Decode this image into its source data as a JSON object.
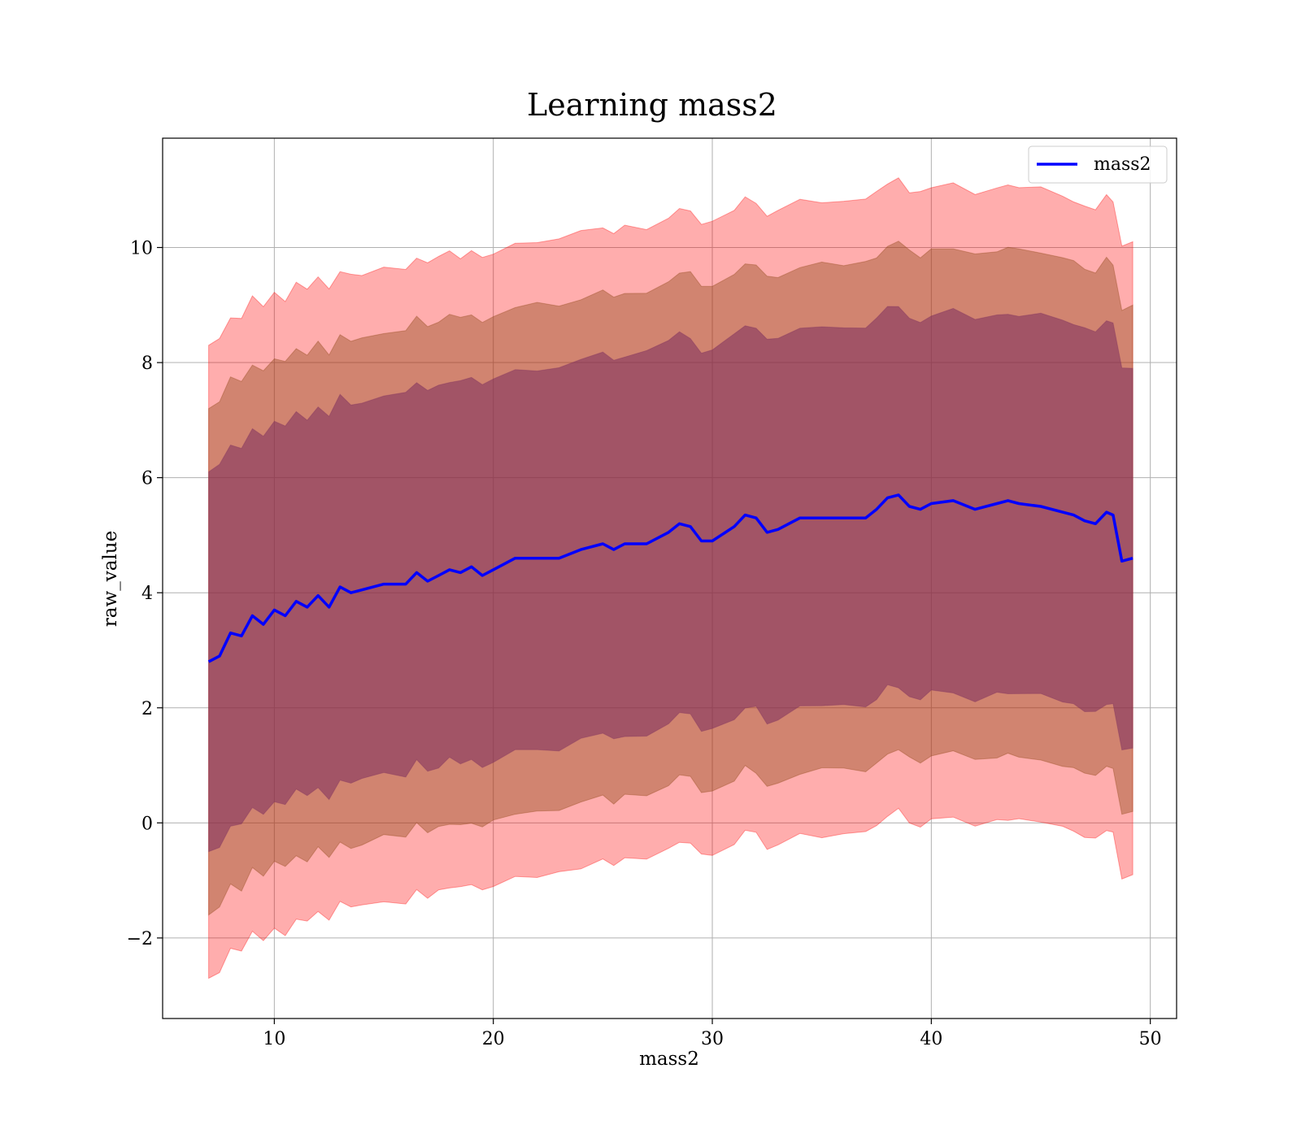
{
  "chart_data": {
    "type": "line",
    "title": "Learning mass2",
    "xlabel": "mass2",
    "ylabel": "raw_value",
    "xlim": [
      4.9,
      51.2
    ],
    "ylim": [
      -3.4,
      11.9
    ],
    "xticks": [
      10,
      20,
      30,
      40,
      50
    ],
    "yticks": [
      -2,
      0,
      2,
      4,
      6,
      8,
      10
    ],
    "ytick_labels": [
      "−2",
      "0",
      "2",
      "4",
      "6",
      "8",
      "10"
    ],
    "grid": true,
    "legend": {
      "position": "top-right",
      "entries": [
        "mass2"
      ]
    },
    "x": [
      7,
      7.5,
      8,
      8.5,
      9,
      9.5,
      10,
      10.5,
      11,
      11.5,
      12,
      12.5,
      13,
      13.5,
      14,
      15,
      16,
      16.5,
      17,
      17.5,
      18,
      18.5,
      19,
      19.5,
      20,
      21,
      22,
      23,
      24,
      25,
      25.5,
      26,
      27,
      28,
      28.5,
      29,
      29.5,
      30,
      31,
      31.5,
      32,
      32.5,
      33,
      34,
      35,
      36,
      37,
      37.5,
      38,
      38.5,
      39,
      39.5,
      40,
      41,
      42,
      43,
      43.5,
      44,
      45,
      46,
      46.5,
      47,
      47.5,
      48,
      48.3,
      48.7,
      49.2
    ],
    "series": [
      {
        "name": "mass2",
        "color": "#0000ff",
        "values": [
          2.8,
          2.9,
          3.3,
          3.25,
          3.6,
          3.45,
          3.7,
          3.6,
          3.85,
          3.75,
          3.95,
          3.75,
          4.1,
          4.0,
          4.05,
          4.15,
          4.15,
          4.35,
          4.2,
          4.3,
          4.4,
          4.35,
          4.45,
          4.3,
          4.4,
          4.6,
          4.6,
          4.6,
          4.75,
          4.85,
          4.75,
          4.85,
          4.85,
          5.05,
          5.2,
          5.15,
          4.9,
          4.9,
          5.15,
          5.35,
          5.3,
          5.05,
          5.1,
          5.3,
          5.3,
          5.3,
          5.3,
          5.45,
          5.65,
          5.7,
          5.5,
          5.45,
          5.55,
          5.6,
          5.45,
          5.55,
          5.6,
          5.55,
          5.5,
          5.4,
          5.35,
          5.25,
          5.2,
          5.4,
          5.35,
          4.55,
          4.6
        ]
      }
    ],
    "bands": [
      {
        "level": "outer",
        "color": "#ff0000",
        "opacity": 0.32,
        "half_width": 5.5
      },
      {
        "level": "middle",
        "color": "#8b4513",
        "opacity": 0.4,
        "half_width": 4.4
      },
      {
        "level": "inner",
        "color": "#7b2d5f",
        "opacity": 0.55,
        "half_width": 3.3
      }
    ],
    "band_ends": {
      "outer_lower": -0.9,
      "outer_upper": 10.1,
      "middle_lower": 0.2,
      "middle_upper": 9.0,
      "inner_lower": 1.3,
      "inner_upper": 7.9
    }
  }
}
